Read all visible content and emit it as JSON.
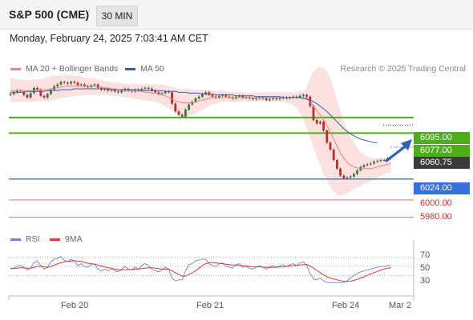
{
  "header": {
    "title": "S&P 500 (CME)",
    "timeframe": "30 MIN"
  },
  "datetime": "Monday, February 24, 2025 7:03:41 AM CET",
  "legend": {
    "bollinger_label": "MA 20 + Bollinger Bands",
    "ma50_label": "MA 50",
    "credit": "Research © 2025 Trading Central"
  },
  "colors": {
    "ma20": "#f28080",
    "ma50": "#3a5ea8",
    "bollinger_fill": "#fcdcdc",
    "up_candle": "#2e7d32",
    "down_candle": "#c62828",
    "resistance": "#4caf1a",
    "support": "#3a6fe0",
    "level_red": "#e57373",
    "rsi": "#6a86d8",
    "rsi_ma": "#e53935",
    "arrow": "#2d5fb3"
  },
  "price_labels": {
    "r1": "6095.00",
    "r2": "6077.00",
    "last": "6060.75",
    "s1": "6024.00",
    "s2": "6000.00",
    "s3": "5980.00"
  },
  "rsi_legend": {
    "rsi": "RSI",
    "ma": "9MA"
  },
  "rsi_ticks": [
    "70",
    "50",
    "30"
  ],
  "x_labels": [
    "Feb 20",
    "Feb 21",
    "Feb 24",
    "Mar 2"
  ],
  "chart_data": {
    "type": "candlestick",
    "price_range": [
      5975,
      6140
    ],
    "levels": [
      {
        "value": 6095.0,
        "kind": "resistance"
      },
      {
        "value": 6077.0,
        "kind": "resistance"
      },
      {
        "value": 6060.75,
        "kind": "last"
      },
      {
        "value": 6024.0,
        "kind": "support"
      },
      {
        "value": 6000.0,
        "kind": "support"
      },
      {
        "value": 5980.0,
        "kind": "support"
      }
    ],
    "close": [
      6122,
      6124,
      6126,
      6125,
      6121,
      6118,
      6123,
      6129,
      6127,
      6120,
      6118,
      6122,
      6127,
      6131,
      6133,
      6136,
      6135,
      6134,
      6136,
      6135,
      6132,
      6133,
      6131,
      6130,
      6132,
      6133,
      6129,
      6127,
      6128,
      6126,
      6127,
      6125,
      6124,
      6126,
      6128,
      6126,
      6125,
      6127,
      6126,
      6128,
      6129,
      6128,
      6126,
      6124,
      6122,
      6123,
      6125,
      6124,
      6111,
      6102,
      6098,
      6096,
      6104,
      6110,
      6113,
      6117,
      6119,
      6122,
      6124,
      6121,
      6119,
      6118,
      6120,
      6121,
      6119,
      6118,
      6117,
      6119,
      6120,
      6118,
      6118,
      6117,
      6116,
      6117,
      6118,
      6117,
      6115,
      6116,
      6117,
      6116,
      6117,
      6118,
      6117,
      6118,
      6119,
      6118,
      6120,
      6121,
      6119,
      6108,
      6092,
      6088,
      6090,
      6080,
      6066,
      6058,
      6046,
      6036,
      6028,
      6025,
      6026,
      6027,
      6030,
      6034,
      6038,
      6040,
      6041,
      6042,
      6044,
      6045,
      6046,
      6046,
      6048,
      6049
    ],
    "bollinger_upper": [
      6140,
      6140,
      6139,
      6139,
      6138,
      6138,
      6138,
      6139,
      6139,
      6139,
      6140,
      6141,
      6142,
      6143,
      6143,
      6144,
      6144,
      6144,
      6144,
      6143,
      6143,
      6142,
      6141,
      6141,
      6140,
      6140,
      6139,
      6138,
      6137,
      6136,
      6136,
      6135,
      6135,
      6134,
      6134,
      6134,
      6134,
      6134,
      6133,
      6133,
      6133,
      6133,
      6133,
      6133,
      6133,
      6133,
      6132,
      6131,
      6130,
      6129,
      6128,
      6128,
      6128,
      6128,
      6127,
      6127,
      6127,
      6127,
      6127,
      6126,
      6126,
      6125,
      6125,
      6125,
      6125,
      6124,
      6124,
      6124,
      6124,
      6124,
      6124,
      6124,
      6124,
      6124,
      6124,
      6124,
      6124,
      6124,
      6124,
      6124,
      6124,
      6124,
      6124,
      6124,
      6124,
      6124,
      6125,
      6125,
      6130,
      6140,
      6148,
      6152,
      6153,
      6152,
      6148,
      6140,
      6128,
      6115,
      6102,
      6090,
      6080,
      6072,
      6066,
      6060,
      6055,
      6052,
      6050,
      6049,
      6048,
      6048,
      6048,
      6048,
      6048,
      6048
    ],
    "bollinger_lower": [
      6112,
      6112,
      6113,
      6113,
      6113,
      6113,
      6113,
      6113,
      6114,
      6114,
      6114,
      6114,
      6115,
      6115,
      6116,
      6117,
      6118,
      6118,
      6119,
      6119,
      6120,
      6120,
      6121,
      6121,
      6121,
      6121,
      6121,
      6121,
      6121,
      6121,
      6120,
      6120,
      6119,
      6119,
      6118,
      6118,
      6117,
      6116,
      6116,
      6115,
      6115,
      6114,
      6114,
      6113,
      6112,
      6110,
      6108,
      6106,
      6103,
      6100,
      6098,
      6096,
      6096,
      6097,
      6098,
      6100,
      6102,
      6104,
      6106,
      6108,
      6110,
      6111,
      6112,
      6113,
      6113,
      6113,
      6113,
      6113,
      6113,
      6114,
      6114,
      6114,
      6114,
      6114,
      6114,
      6114,
      6114,
      6114,
      6114,
      6114,
      6113,
      6113,
      6112,
      6111,
      6109,
      6106,
      6100,
      6092,
      6082,
      6072,
      6060,
      6050,
      6040,
      6030,
      6022,
      6015,
      6010,
      6006,
      6005,
      6006,
      6008,
      6010,
      6012,
      6014,
      6016,
      6018,
      6020,
      6022,
      6024,
      6026,
      6028,
      6030,
      6031,
      6032
    ],
    "ma20": [
      6126,
      6126,
      6126,
      6126,
      6126,
      6126,
      6126,
      6126,
      6126,
      6126,
      6127,
      6127,
      6128,
      6129,
      6129,
      6130,
      6131,
      6131,
      6131,
      6131,
      6131,
      6131,
      6131,
      6131,
      6131,
      6131,
      6130,
      6130,
      6129,
      6129,
      6128,
      6128,
      6127,
      6127,
      6126,
      6126,
      6126,
      6126,
      6125,
      6125,
      6124,
      6124,
      6123,
      6123,
      6122,
      6121,
      6120,
      6118,
      6116,
      6114,
      6113,
      6112,
      6112,
      6112,
      6112,
      6113,
      6114,
      6115,
      6116,
      6117,
      6118,
      6118,
      6118,
      6118,
      6118,
      6118,
      6118,
      6118,
      6118,
      6118,
      6118,
      6118,
      6118,
      6118,
      6118,
      6118,
      6118,
      6118,
      6118,
      6118,
      6118,
      6118,
      6118,
      6118,
      6118,
      6118,
      6118,
      6118,
      6117,
      6113,
      6108,
      6103,
      6098,
      6092,
      6086,
      6078,
      6070,
      6062,
      6054,
      6048,
      6043,
      6040,
      6038,
      6037,
      6036,
      6036,
      6036,
      6036,
      6037,
      6038,
      6039,
      6040,
      6041,
      6042
    ],
    "ma50": [
      6124,
      6124,
      6124,
      6124,
      6124,
      6125,
      6125,
      6125,
      6125,
      6125,
      6125,
      6126,
      6126,
      6126,
      6126,
      6127,
      6127,
      6127,
      6127,
      6128,
      6128,
      6128,
      6128,
      6128,
      6128,
      6128,
      6128,
      6128,
      6128,
      6128,
      6127,
      6127,
      6127,
      6127,
      6127,
      6127,
      6127,
      6127,
      6127,
      6126,
      6126,
      6126,
      6126,
      6126,
      6126,
      6126,
      6125,
      6125,
      6125,
      6125,
      6124,
      6124,
      6124,
      6123,
      6123,
      6123,
      6123,
      6122,
      6122,
      6122,
      6122,
      6121,
      6121,
      6121,
      6121,
      6121,
      6121,
      6120,
      6120,
      6120,
      6120,
      6120,
      6120,
      6119,
      6119,
      6119,
      6119,
      6119,
      6119,
      6119,
      6119,
      6118,
      6118,
      6118,
      6118,
      6118,
      6118,
      6117,
      6116,
      6115,
      6113,
      6111,
      6108,
      6105,
      6102,
      6098,
      6094,
      6090,
      6086,
      6082,
      6079,
      6076,
      6074,
      6072,
      6070,
      6069,
      6068,
      6067,
      6066,
      6066
    ],
    "rsi_range": [
      0,
      100
    ],
    "rsi": [
      44,
      46,
      50,
      52,
      48,
      42,
      46,
      58,
      62,
      52,
      44,
      48,
      60,
      66,
      68,
      72,
      64,
      60,
      66,
      62,
      52,
      56,
      50,
      48,
      54,
      56,
      44,
      40,
      44,
      40,
      44,
      40,
      38,
      44,
      50,
      44,
      42,
      48,
      44,
      52,
      56,
      52,
      44,
      40,
      38,
      42,
      48,
      44,
      24,
      18,
      20,
      20,
      40,
      54,
      56,
      62,
      64,
      66,
      66,
      56,
      52,
      50,
      56,
      58,
      50,
      48,
      46,
      54,
      56,
      48,
      50,
      46,
      44,
      48,
      52,
      48,
      44,
      48,
      52,
      48,
      52,
      54,
      50,
      54,
      56,
      52,
      58,
      60,
      52,
      34,
      22,
      20,
      24,
      18,
      14,
      14,
      14,
      14,
      14,
      14,
      18,
      24,
      30,
      34,
      38,
      40,
      42,
      44,
      46,
      48,
      50,
      50,
      52,
      52
    ],
    "rsi_ma": [
      46,
      45,
      46,
      47,
      47,
      46,
      46,
      48,
      50,
      50,
      49,
      48,
      50,
      53,
      56,
      58,
      60,
      61,
      62,
      63,
      62,
      61,
      59,
      57,
      56,
      55,
      53,
      51,
      49,
      47,
      46,
      44,
      43,
      42,
      43,
      43,
      43,
      44,
      44,
      45,
      46,
      47,
      47,
      46,
      45,
      44,
      44,
      44,
      40,
      36,
      32,
      28,
      28,
      32,
      36,
      40,
      46,
      52,
      56,
      58,
      59,
      58,
      57,
      56,
      55,
      54,
      53,
      53,
      52,
      52,
      51,
      50,
      49,
      49,
      49,
      48,
      48,
      48,
      48,
      48,
      49,
      49,
      50,
      51,
      52,
      52,
      53,
      54,
      54,
      51,
      46,
      41,
      36,
      31,
      27,
      24,
      22,
      20,
      18,
      17,
      16,
      17,
      19,
      21,
      24,
      27,
      30,
      33,
      36,
      39,
      42,
      44,
      46,
      47
    ]
  }
}
